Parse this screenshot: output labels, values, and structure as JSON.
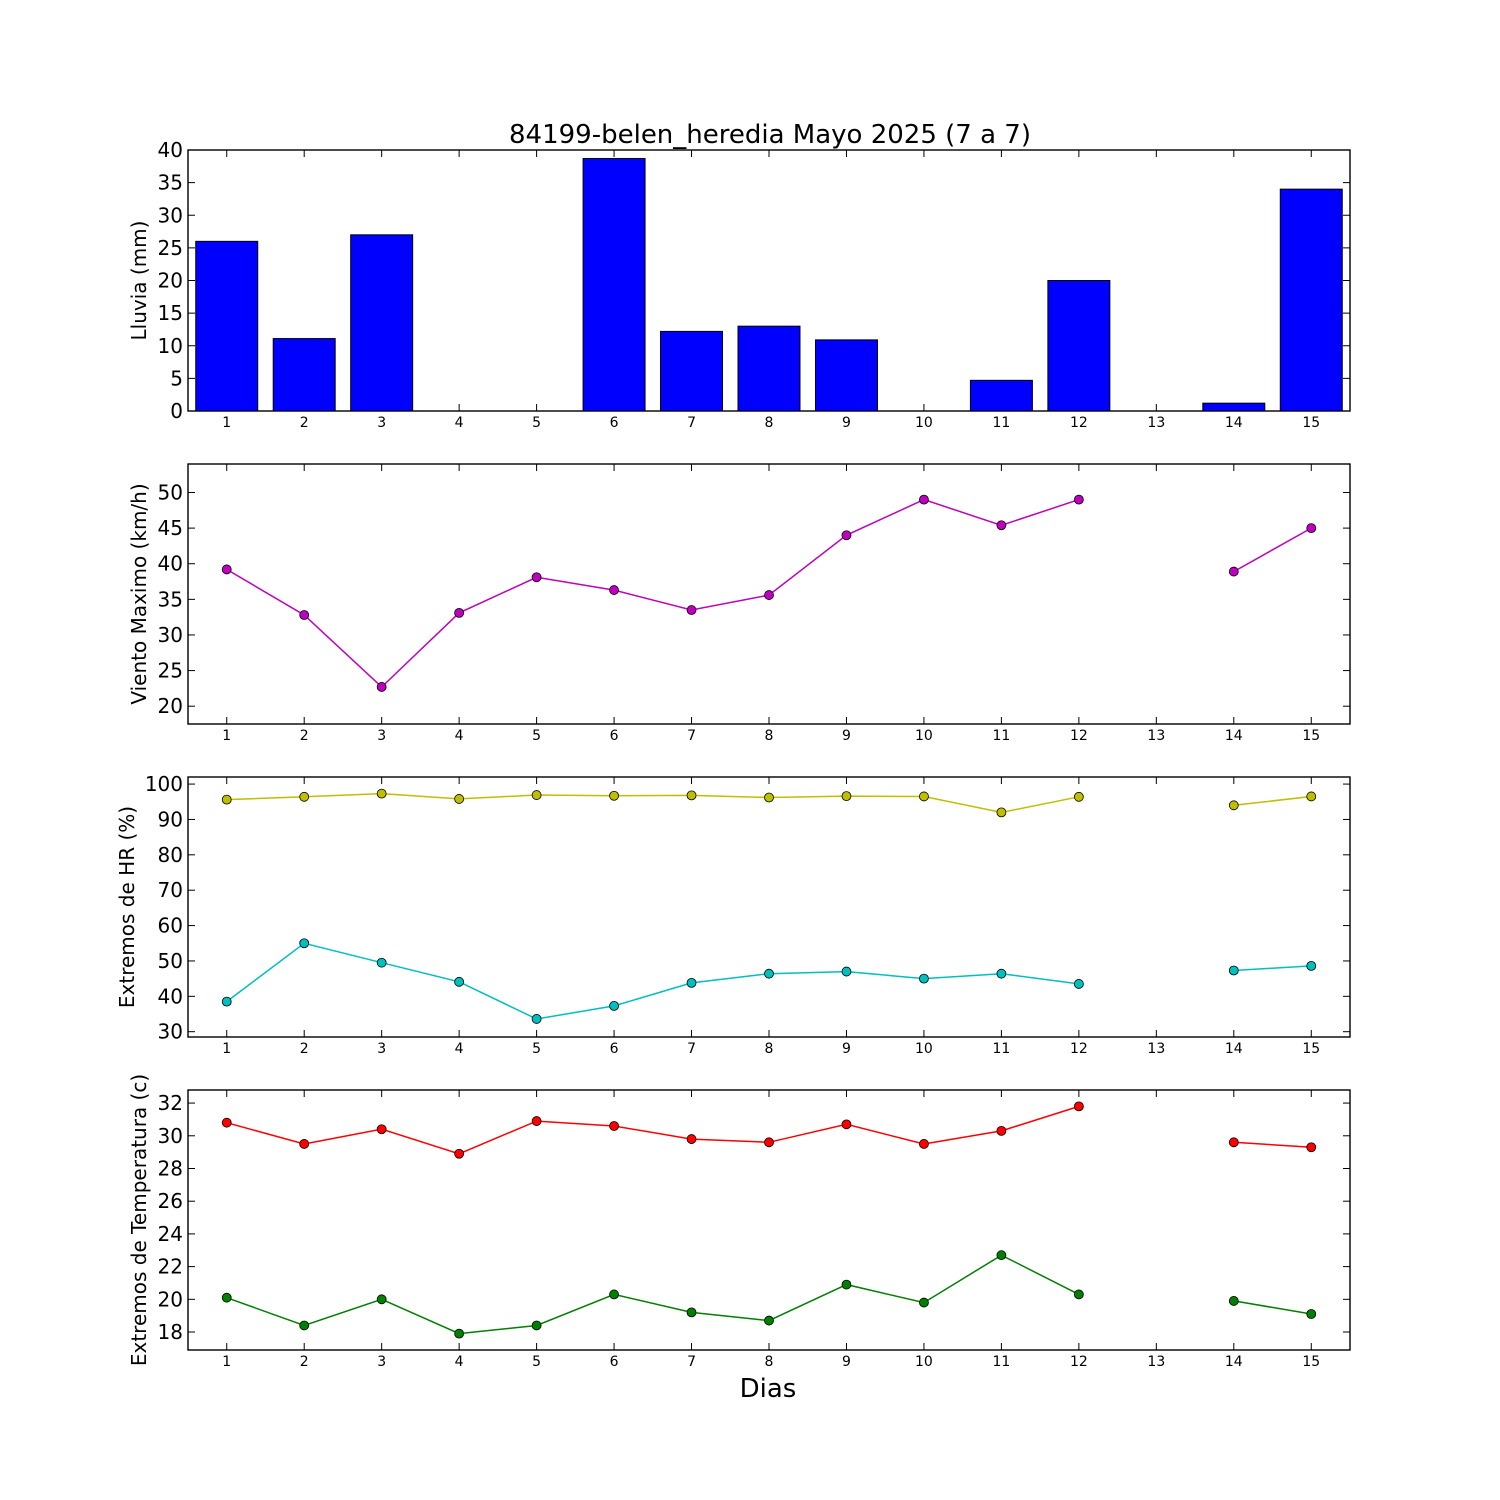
{
  "title": "84199-belen_heredia Mayo 2025  (7 a 7)",
  "xlabel": "Dias",
  "chart_data": [
    {
      "type": "bar",
      "ylabel": "Lluvia (mm)",
      "x": [
        1,
        2,
        3,
        4,
        5,
        6,
        7,
        8,
        9,
        10,
        11,
        12,
        13,
        14,
        15
      ],
      "xticks": [
        "1",
        "2",
        "3",
        "4",
        "5",
        "6",
        "7",
        "8",
        "9",
        "10",
        "11",
        "12",
        "13",
        "14",
        "15"
      ],
      "xlim": [
        0.5,
        15.5
      ],
      "ylim": [
        0,
        40
      ],
      "yticks": [
        0,
        5,
        10,
        15,
        20,
        25,
        30,
        35,
        40
      ],
      "series": [
        {
          "color": "#0000ff",
          "values": [
            26.0,
            11.1,
            27.0,
            0,
            0,
            38.7,
            12.2,
            13.0,
            10.9,
            0,
            4.7,
            20.0,
            0,
            1.2,
            34.0
          ]
        }
      ]
    },
    {
      "type": "line",
      "ylabel": "Viento Maximo (km/h)",
      "x": [
        1,
        2,
        3,
        4,
        5,
        6,
        7,
        8,
        9,
        10,
        11,
        12,
        13,
        14,
        15
      ],
      "xticks": [
        "1",
        "2",
        "3",
        "4",
        "5",
        "6",
        "7",
        "8",
        "9",
        "10",
        "11",
        "12",
        "13",
        "14",
        "15"
      ],
      "xlim": [
        0.5,
        15.5
      ],
      "ylim": [
        17.5,
        54
      ],
      "yticks": [
        20,
        25,
        30,
        35,
        40,
        45,
        50
      ],
      "series": [
        {
          "color": "#bf00bf",
          "values": [
            39.2,
            32.8,
            22.7,
            33.1,
            38.1,
            36.3,
            33.5,
            35.6,
            44.0,
            49.0,
            45.4,
            49.0,
            null,
            38.9,
            45.0
          ]
        }
      ]
    },
    {
      "type": "line",
      "ylabel": "Extremos de HR (%)",
      "x": [
        1,
        2,
        3,
        4,
        5,
        6,
        7,
        8,
        9,
        10,
        11,
        12,
        13,
        14,
        15
      ],
      "xticks": [
        "1",
        "2",
        "3",
        "4",
        "5",
        "6",
        "7",
        "8",
        "9",
        "10",
        "11",
        "12",
        "13",
        "14",
        "15"
      ],
      "xlim": [
        0.5,
        15.5
      ],
      "ylim": [
        28.5,
        102
      ],
      "yticks": [
        30,
        40,
        50,
        60,
        70,
        80,
        90,
        100
      ],
      "series": [
        {
          "color": "#bfbf00",
          "values": [
            95.6,
            96.4,
            97.3,
            95.8,
            96.9,
            96.7,
            96.8,
            96.2,
            96.6,
            96.5,
            92.0,
            96.4,
            null,
            94.0,
            96.5
          ]
        },
        {
          "color": "#00bfbf",
          "values": [
            38.5,
            55.0,
            49.5,
            44.1,
            33.6,
            37.3,
            43.8,
            46.4,
            47.0,
            45.0,
            46.4,
            43.5,
            null,
            47.3,
            48.6
          ]
        }
      ]
    },
    {
      "type": "line",
      "ylabel": "Extremos de Temperatura (c)",
      "x": [
        1,
        2,
        3,
        4,
        5,
        6,
        7,
        8,
        9,
        10,
        11,
        12,
        13,
        14,
        15
      ],
      "xticks": [
        "1",
        "2",
        "3",
        "4",
        "5",
        "6",
        "7",
        "8",
        "9",
        "10",
        "11",
        "12",
        "13",
        "14",
        "15"
      ],
      "xlim": [
        0.5,
        15.5
      ],
      "ylim": [
        16.9,
        32.8
      ],
      "yticks": [
        18,
        20,
        22,
        24,
        26,
        28,
        30,
        32
      ],
      "series": [
        {
          "color": "#ff0000",
          "values": [
            30.8,
            29.5,
            30.4,
            28.9,
            30.9,
            30.6,
            29.8,
            29.6,
            30.7,
            29.5,
            30.3,
            31.8,
            null,
            29.6,
            29.3
          ]
        },
        {
          "color": "#008000",
          "values": [
            20.1,
            18.4,
            20.0,
            17.9,
            18.4,
            20.3,
            19.2,
            18.7,
            20.9,
            19.8,
            22.7,
            20.3,
            null,
            19.9,
            19.1
          ]
        }
      ]
    }
  ]
}
